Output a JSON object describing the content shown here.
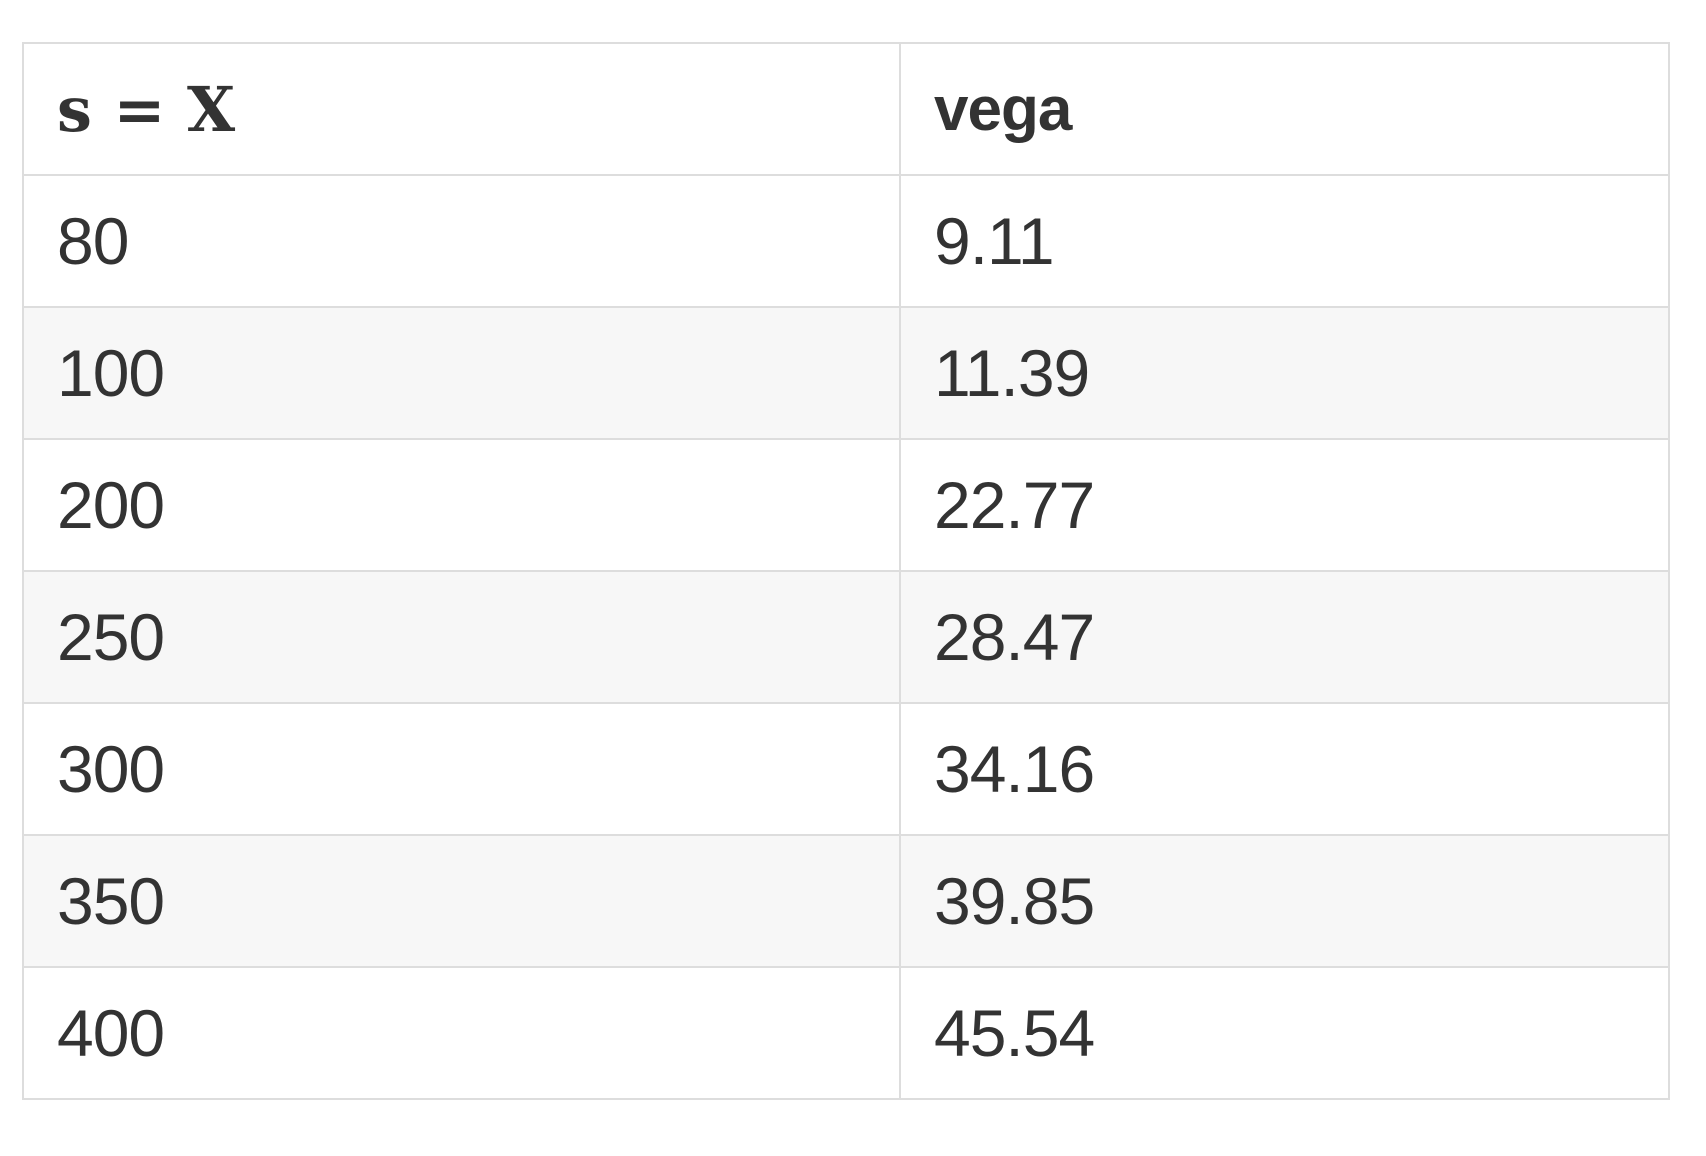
{
  "table": {
    "headers": [
      "s = X",
      "vega"
    ],
    "rows": [
      [
        "80",
        "9.11"
      ],
      [
        "100",
        "11.39"
      ],
      [
        "200",
        "22.77"
      ],
      [
        "250",
        "28.47"
      ],
      [
        "300",
        "34.16"
      ],
      [
        "350",
        "39.85"
      ],
      [
        "400",
        "45.54"
      ]
    ]
  },
  "colors": {
    "text": "#333333",
    "border": "#dddddd",
    "stripe": "#f7f7f7",
    "background": "#ffffff"
  }
}
